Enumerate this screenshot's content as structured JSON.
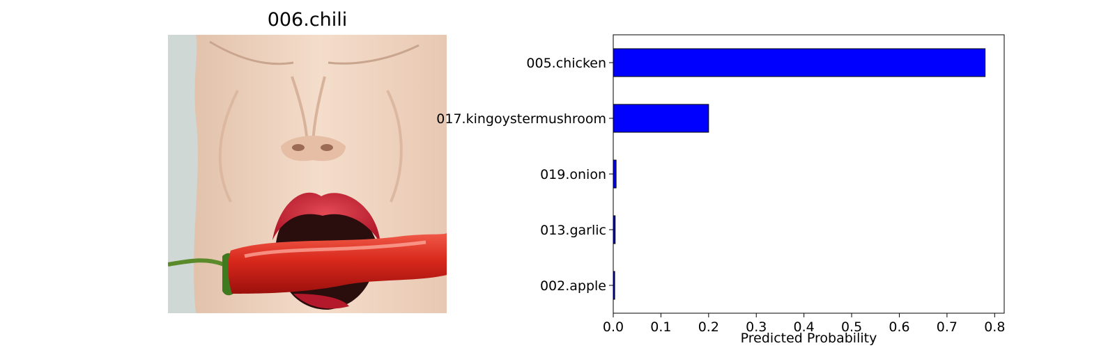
{
  "image_panel": {
    "title": "006.chili"
  },
  "chart_data": {
    "type": "bar",
    "orientation": "horizontal",
    "categories": [
      "005.chicken",
      "017.kingoystermushroom",
      "019.onion",
      "013.garlic",
      "002.apple"
    ],
    "values": [
      0.78,
      0.2,
      0.006,
      0.004,
      0.003
    ],
    "xlabel": "Predicted Probability",
    "ylabel": "",
    "xlim": [
      0,
      0.82
    ],
    "xticks": [
      "0.0",
      "0.1",
      "0.2",
      "0.3",
      "0.4",
      "0.5",
      "0.6",
      "0.7",
      "0.8"
    ],
    "grid": false,
    "bar_color": "#0000ff",
    "edge_color": "#000000"
  }
}
